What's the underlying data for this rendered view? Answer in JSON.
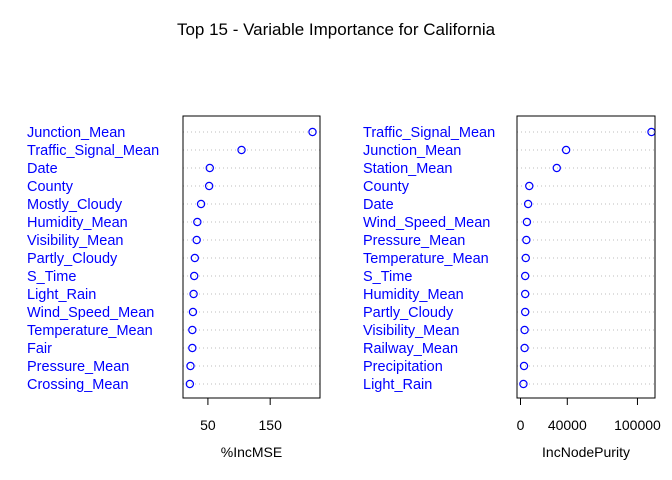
{
  "chart_data": {
    "type": "dotchart",
    "title": "Top 15 - Variable Importance for California",
    "label_color": "#0000FF",
    "point_color": "#0000FF",
    "grid": true,
    "panels": [
      {
        "xlabel": "%IncMSE",
        "xlim": [
          10,
          230
        ],
        "xticks": [
          50,
          150
        ],
        "categories": [
          "Junction_Mean",
          "Traffic_Signal_Mean",
          "Date",
          "County",
          "Mostly_Cloudy",
          "Humidity_Mean",
          "Visibility_Mean",
          "Partly_Cloudy",
          "S_Time",
          "Light_Rain",
          "Wind_Speed_Mean",
          "Temperature_Mean",
          "Fair",
          "Pressure_Mean",
          "Crossing_Mean"
        ],
        "values": [
          218,
          104,
          53,
          52,
          39,
          33,
          32,
          29,
          28,
          27,
          26,
          25,
          25,
          22,
          21
        ]
      },
      {
        "xlabel": "IncNodePurity",
        "xlim": [
          -3000,
          115000
        ],
        "xticks": [
          0,
          40000,
          100000
        ],
        "categories": [
          "Traffic_Signal_Mean",
          "Junction_Mean",
          "Station_Mean",
          "County",
          "Date",
          "Wind_Speed_Mean",
          "Pressure_Mean",
          "Temperature_Mean",
          "S_Time",
          "Humidity_Mean",
          "Partly_Cloudy",
          "Visibility_Mean",
          "Railway_Mean",
          "Precipitation",
          "Light_Rain"
        ],
        "values": [
          112000,
          39000,
          31000,
          7500,
          6500,
          5500,
          5000,
          4500,
          4000,
          4000,
          4000,
          3500,
          3500,
          3000,
          2500
        ]
      }
    ]
  }
}
